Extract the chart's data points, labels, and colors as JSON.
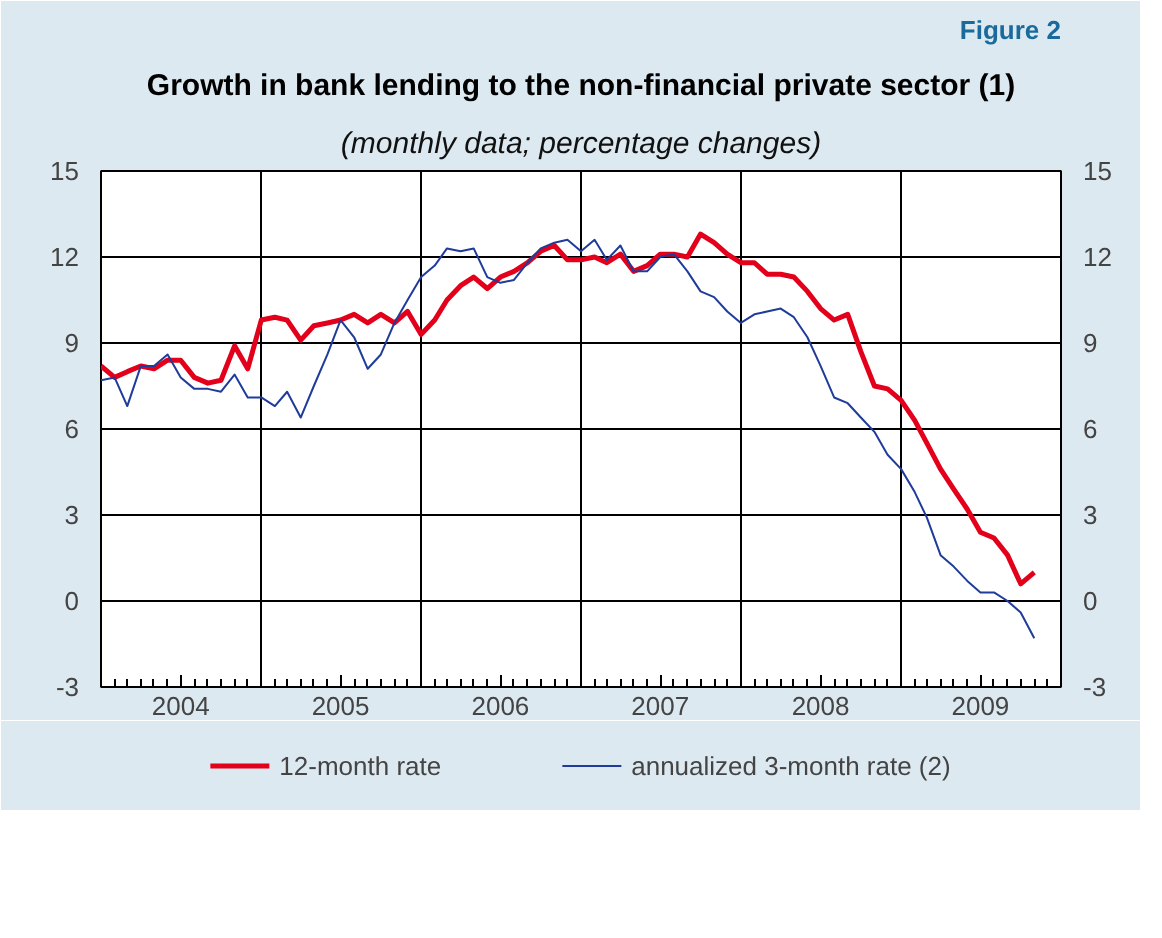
{
  "chart_data": {
    "type": "line",
    "title": "Growth in bank lending to the non-financial private sector (1)",
    "subtitle": "(monthly data; percentage changes)",
    "annotations": [
      "Figure 2"
    ],
    "xlim": [
      "2004-01",
      "2010-01"
    ],
    "xticks": [
      {
        "value": "2004-07",
        "label": "2004"
      },
      {
        "value": "2005-01",
        "label": null
      },
      {
        "value": "2005-07",
        "label": "2005"
      },
      {
        "value": "2006-01",
        "label": null
      },
      {
        "value": "2006-07",
        "label": "2006"
      },
      {
        "value": "2007-01",
        "label": null
      },
      {
        "value": "2007-07",
        "label": "2007"
      },
      {
        "value": "2008-01",
        "label": null
      },
      {
        "value": "2008-07",
        "label": "2008"
      },
      {
        "value": "2009-01",
        "label": null
      },
      {
        "value": "2009-07",
        "label": "2009"
      }
    ],
    "ylim": [
      -3,
      15
    ],
    "yticks": [
      -3,
      0,
      3,
      6,
      9,
      12,
      15
    ],
    "y2lim": [
      -3,
      15
    ],
    "y2ticks": [
      -3,
      0,
      3,
      6,
      9,
      12,
      15
    ],
    "grid": true,
    "legend": "bottom",
    "x": [
      "2004-01",
      "2004-02",
      "2004-03",
      "2004-04",
      "2004-05",
      "2004-06",
      "2004-07",
      "2004-08",
      "2004-09",
      "2004-10",
      "2004-11",
      "2004-12",
      "2005-01",
      "2005-02",
      "2005-03",
      "2005-04",
      "2005-05",
      "2005-06",
      "2005-07",
      "2005-08",
      "2005-09",
      "2005-10",
      "2005-11",
      "2005-12",
      "2006-01",
      "2006-02",
      "2006-03",
      "2006-04",
      "2006-05",
      "2006-06",
      "2006-07",
      "2006-08",
      "2006-09",
      "2006-10",
      "2006-11",
      "2006-12",
      "2007-01",
      "2007-02",
      "2007-03",
      "2007-04",
      "2007-05",
      "2007-06",
      "2007-07",
      "2007-08",
      "2007-09",
      "2007-10",
      "2007-11",
      "2007-12",
      "2008-01",
      "2008-02",
      "2008-03",
      "2008-04",
      "2008-05",
      "2008-06",
      "2008-07",
      "2008-08",
      "2008-09",
      "2008-10",
      "2008-11",
      "2008-12",
      "2009-01",
      "2009-02",
      "2009-03",
      "2009-04",
      "2009-05",
      "2009-06",
      "2009-07",
      "2009-08",
      "2009-09",
      "2009-10",
      "2009-11"
    ],
    "series": [
      {
        "name": "12-month rate",
        "color": "#e3001b",
        "values": [
          8.2,
          7.8,
          8.0,
          8.2,
          8.1,
          8.4,
          8.4,
          7.8,
          7.6,
          7.7,
          8.9,
          8.1,
          9.8,
          9.9,
          9.8,
          9.1,
          9.6,
          9.7,
          9.8,
          10.0,
          9.7,
          10.0,
          9.7,
          10.1,
          9.3,
          9.8,
          10.5,
          11.0,
          11.3,
          10.9,
          11.3,
          11.5,
          11.8,
          12.2,
          12.4,
          11.9,
          11.9,
          12.0,
          11.8,
          12.1,
          11.5,
          11.7,
          12.1,
          12.1,
          12.0,
          12.8,
          12.5,
          12.1,
          11.8,
          11.8,
          11.4,
          11.4,
          11.3,
          10.8,
          10.2,
          9.8,
          10.0,
          8.7,
          7.5,
          7.4,
          7.0,
          6.3,
          5.5,
          4.6,
          3.9,
          3.2,
          2.4,
          2.2,
          1.6,
          0.6,
          1.0
        ]
      },
      {
        "name": "annualized 3-month rate (2)",
        "color": "#1f3c9b",
        "values": [
          7.7,
          7.8,
          6.8,
          8.2,
          8.2,
          8.6,
          7.8,
          7.4,
          7.4,
          7.3,
          7.9,
          7.1,
          7.1,
          6.8,
          7.3,
          6.4,
          7.5,
          8.6,
          9.8,
          9.2,
          8.1,
          8.6,
          9.7,
          10.5,
          11.3,
          11.7,
          12.3,
          12.2,
          12.3,
          11.3,
          11.1,
          11.2,
          11.8,
          12.3,
          12.5,
          12.6,
          12.2,
          12.6,
          11.9,
          12.4,
          11.5,
          11.5,
          12.0,
          12.1,
          11.5,
          10.8,
          10.6,
          10.1,
          9.7,
          10.0,
          10.1,
          10.2,
          9.9,
          9.2,
          8.2,
          7.1,
          6.9,
          6.4,
          5.9,
          5.1,
          4.6,
          3.8,
          2.9,
          1.6,
          1.2,
          0.7,
          0.3,
          0.3,
          0.0,
          -0.4,
          -1.3
        ]
      }
    ]
  }
}
